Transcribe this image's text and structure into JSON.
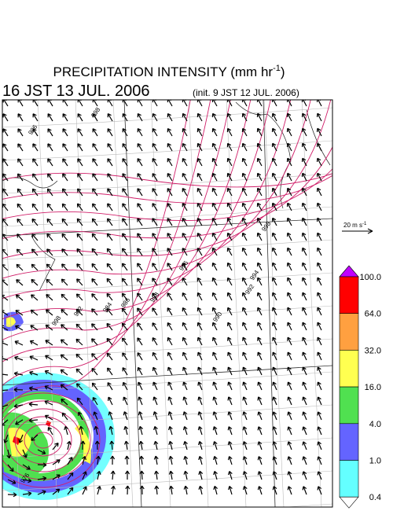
{
  "header": {
    "title": "PRECIPITATION INTENSITY (mm hr",
    "title_sup": "-1",
    "title_end": ")",
    "valid_time": "16 JST 13 JUL. 2006",
    "init_time": "(init. 9 JST 12 JUL. 2006)"
  },
  "wind_reference": {
    "label": "20 m s",
    "label_sup": "-1"
  },
  "colorbar": {
    "labels": [
      "100.0",
      "64.0",
      "32.0",
      "16.0",
      "4.0",
      "1.0",
      "0.4"
    ],
    "colors": [
      "#ff0000",
      "#ffa040",
      "#ffff50",
      "#50e050",
      "#6464ff",
      "#64ffff"
    ],
    "top_color": "#c000ff",
    "bottom_color": "#ffffff"
  },
  "isobar_labels": [
    "998",
    "996",
    "996",
    "994",
    "992",
    "990",
    "988",
    "986",
    "984",
    "982",
    "998",
    "998",
    "976"
  ]
}
